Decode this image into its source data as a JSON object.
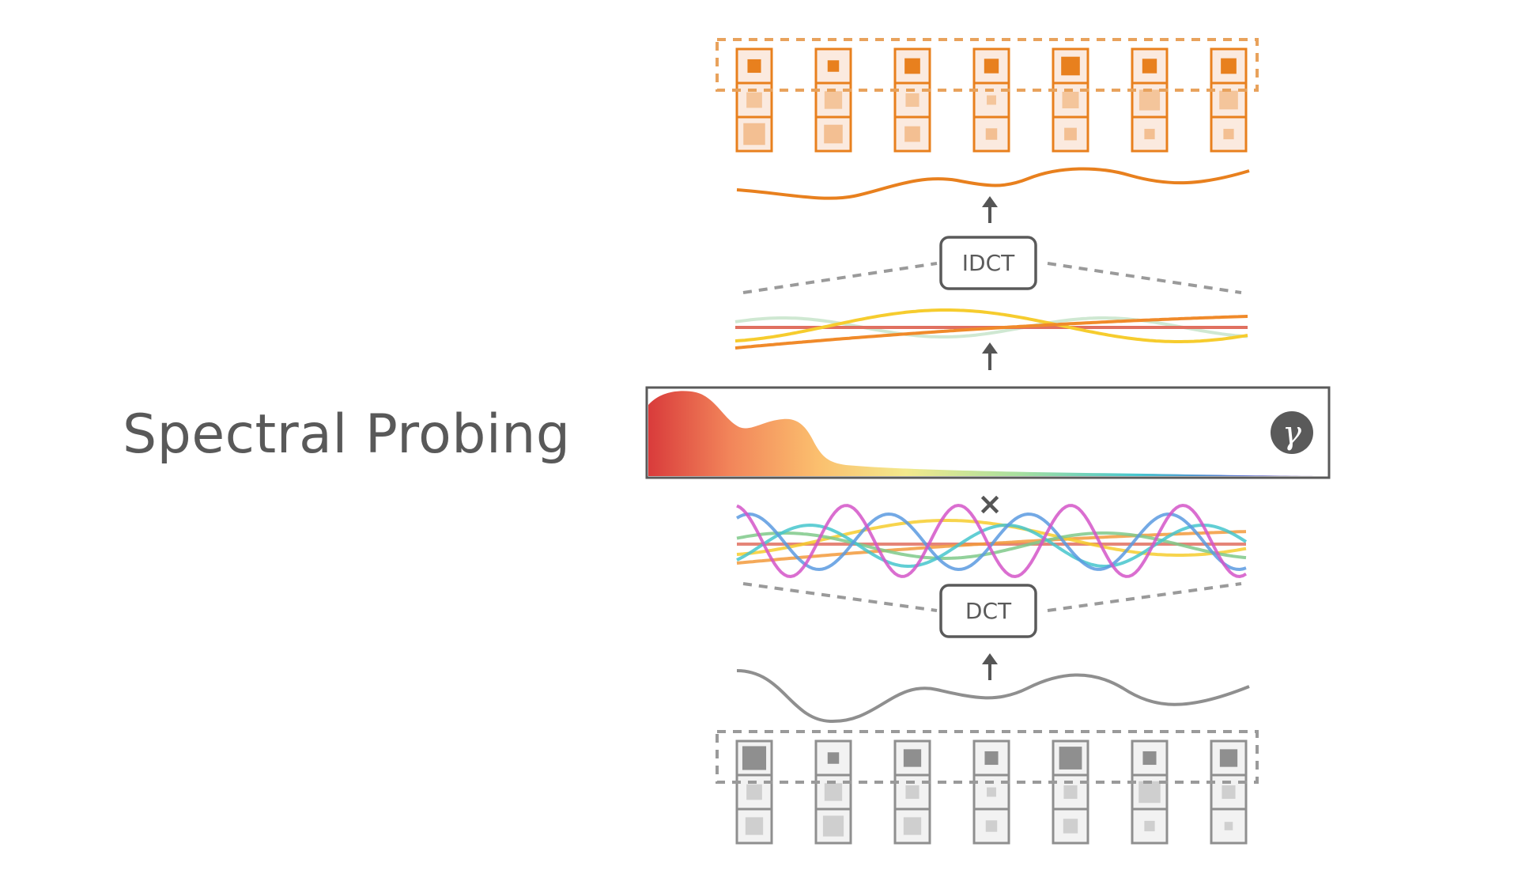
{
  "title": "Spectral Probing",
  "operators": {
    "dct": "DCT",
    "idct": "IDCT",
    "multiply": "×",
    "gamma": "γ"
  },
  "colors": {
    "input": "#8f8f8f",
    "input_fill": "#f2f2f2",
    "output": "#e8801e",
    "output_fill": "#fbeadf",
    "text": "#595959",
    "spectrum": [
      "#d93b3b",
      "#f2855a",
      "#fbbf6e",
      "#f3e98c",
      "#a6dfa0",
      "#48c7cf",
      "#5a6fd0",
      "#6a3d9a"
    ]
  },
  "token_columns": 7,
  "input_token_cells": [
    [
      0.85,
      0.45,
      0.55
    ],
    [
      0.25,
      0.55,
      0.7
    ],
    [
      0.55,
      0.35,
      0.55
    ],
    [
      0.35,
      0.15,
      0.25
    ],
    [
      0.8,
      0.35,
      0.4
    ],
    [
      0.35,
      0.75,
      0.2
    ],
    [
      0.55,
      0.35,
      0.1
    ]
  ],
  "output_token_cells": [
    [
      0.35,
      0.45,
      0.75
    ],
    [
      0.25,
      0.55,
      0.6
    ],
    [
      0.45,
      0.35,
      0.45
    ],
    [
      0.4,
      0.15,
      0.25
    ],
    [
      0.6,
      0.5,
      0.3
    ],
    [
      0.4,
      0.7,
      0.2
    ],
    [
      0.45,
      0.6,
      0.2
    ]
  ],
  "components": [
    {
      "color": "#e07060"
    },
    {
      "color": "#f29a3c"
    },
    {
      "color": "#f6cc2e"
    },
    {
      "color": "#7fc98a"
    },
    {
      "color": "#45c5cc"
    },
    {
      "color": "#5b9ae0"
    },
    {
      "color": "#d455c8"
    }
  ],
  "filtered_components": [
    {
      "color": "#e07060"
    },
    {
      "color": "#f08a2a"
    },
    {
      "color": "#f6cc2e"
    },
    {
      "color": "#cfe8d2"
    }
  ]
}
